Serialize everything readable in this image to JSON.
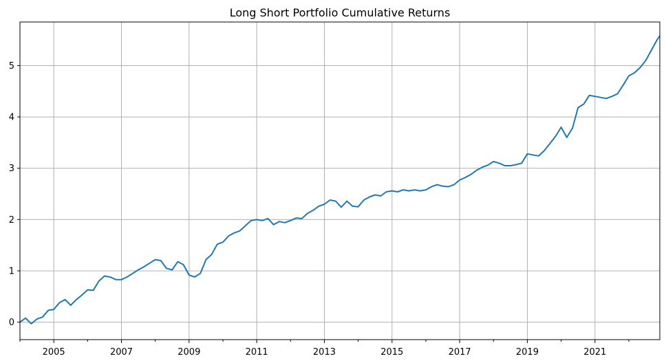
{
  "chart_data": {
    "type": "line",
    "title": "Long Short Portfolio Cumulative Returns",
    "xlabel": "",
    "ylabel": "",
    "xlim": [
      "2004-01",
      "2022-12"
    ],
    "ylim": [
      -0.34,
      5.85
    ],
    "grid": true,
    "x_major_ticks": [
      "2005",
      "2007",
      "2009",
      "2011",
      "2013",
      "2015",
      "2017",
      "2019",
      "2021"
    ],
    "y_ticks": [
      0,
      1,
      2,
      3,
      4,
      5
    ],
    "y_tick_labels": [
      "0",
      "1",
      "2",
      "3",
      "4",
      "5"
    ],
    "color": "#1f77b4",
    "series": [
      {
        "points": [
          [
            "2004-01",
            0.0
          ],
          [
            "2004-03",
            0.08
          ],
          [
            "2004-05",
            -0.03
          ],
          [
            "2004-07",
            0.06
          ],
          [
            "2004-09",
            0.1
          ],
          [
            "2004-11",
            0.23
          ],
          [
            "2005-01",
            0.25
          ],
          [
            "2005-03",
            0.38
          ],
          [
            "2005-05",
            0.44
          ],
          [
            "2005-07",
            0.33
          ],
          [
            "2005-09",
            0.44
          ],
          [
            "2005-11",
            0.53
          ],
          [
            "2006-01",
            0.63
          ],
          [
            "2006-03",
            0.62
          ],
          [
            "2006-05",
            0.8
          ],
          [
            "2006-07",
            0.9
          ],
          [
            "2006-09",
            0.88
          ],
          [
            "2006-11",
            0.83
          ],
          [
            "2007-01",
            0.83
          ],
          [
            "2007-03",
            0.88
          ],
          [
            "2007-05",
            0.95
          ],
          [
            "2007-07",
            1.02
          ],
          [
            "2007-09",
            1.08
          ],
          [
            "2007-11",
            1.15
          ],
          [
            "2008-01",
            1.22
          ],
          [
            "2008-03",
            1.2
          ],
          [
            "2008-05",
            1.05
          ],
          [
            "2008-07",
            1.02
          ],
          [
            "2008-09",
            1.18
          ],
          [
            "2008-11",
            1.12
          ],
          [
            "2009-01",
            0.92
          ],
          [
            "2009-03",
            0.88
          ],
          [
            "2009-05",
            0.95
          ],
          [
            "2009-07",
            1.22
          ],
          [
            "2009-09",
            1.32
          ],
          [
            "2009-11",
            1.52
          ],
          [
            "2010-01",
            1.56
          ],
          [
            "2010-03",
            1.68
          ],
          [
            "2010-05",
            1.74
          ],
          [
            "2010-07",
            1.78
          ],
          [
            "2010-09",
            1.88
          ],
          [
            "2010-11",
            1.98
          ],
          [
            "2011-01",
            2.0
          ],
          [
            "2011-03",
            1.98
          ],
          [
            "2011-05",
            2.02
          ],
          [
            "2011-07",
            1.9
          ],
          [
            "2011-09",
            1.96
          ],
          [
            "2011-11",
            1.94
          ],
          [
            "2012-01",
            1.98
          ],
          [
            "2012-03",
            2.03
          ],
          [
            "2012-05",
            2.02
          ],
          [
            "2012-07",
            2.12
          ],
          [
            "2012-09",
            2.18
          ],
          [
            "2012-11",
            2.26
          ],
          [
            "2013-01",
            2.3
          ],
          [
            "2013-03",
            2.38
          ],
          [
            "2013-05",
            2.36
          ],
          [
            "2013-07",
            2.24
          ],
          [
            "2013-09",
            2.36
          ],
          [
            "2013-11",
            2.26
          ],
          [
            "2014-01",
            2.25
          ],
          [
            "2014-03",
            2.38
          ],
          [
            "2014-05",
            2.44
          ],
          [
            "2014-07",
            2.48
          ],
          [
            "2014-09",
            2.46
          ],
          [
            "2014-11",
            2.54
          ],
          [
            "2015-01",
            2.56
          ],
          [
            "2015-03",
            2.54
          ],
          [
            "2015-05",
            2.58
          ],
          [
            "2015-07",
            2.56
          ],
          [
            "2015-09",
            2.58
          ],
          [
            "2015-11",
            2.56
          ],
          [
            "2016-01",
            2.58
          ],
          [
            "2016-03",
            2.64
          ],
          [
            "2016-05",
            2.68
          ],
          [
            "2016-07",
            2.65
          ],
          [
            "2016-09",
            2.64
          ],
          [
            "2016-11",
            2.68
          ],
          [
            "2017-01",
            2.77
          ],
          [
            "2017-03",
            2.82
          ],
          [
            "2017-05",
            2.88
          ],
          [
            "2017-07",
            2.96
          ],
          [
            "2017-09",
            3.02
          ],
          [
            "2017-11",
            3.06
          ],
          [
            "2018-01",
            3.13
          ],
          [
            "2018-03",
            3.1
          ],
          [
            "2018-05",
            3.05
          ],
          [
            "2018-07",
            3.05
          ],
          [
            "2018-09",
            3.07
          ],
          [
            "2018-11",
            3.1
          ],
          [
            "2019-01",
            3.28
          ],
          [
            "2019-03",
            3.26
          ],
          [
            "2019-05",
            3.24
          ],
          [
            "2019-07",
            3.34
          ],
          [
            "2019-09",
            3.48
          ],
          [
            "2019-11",
            3.62
          ],
          [
            "2020-01",
            3.8
          ],
          [
            "2020-03",
            3.6
          ],
          [
            "2020-05",
            3.78
          ],
          [
            "2020-07",
            4.18
          ],
          [
            "2020-09",
            4.25
          ],
          [
            "2020-11",
            4.42
          ],
          [
            "2021-01",
            4.4
          ],
          [
            "2021-03",
            4.38
          ],
          [
            "2021-05",
            4.36
          ],
          [
            "2021-07",
            4.4
          ],
          [
            "2021-09",
            4.45
          ],
          [
            "2021-11",
            4.62
          ],
          [
            "2022-01",
            4.8
          ],
          [
            "2022-03",
            4.86
          ],
          [
            "2022-05",
            4.96
          ],
          [
            "2022-07",
            5.1
          ],
          [
            "2022-09",
            5.3
          ],
          [
            "2022-11",
            5.5
          ],
          [
            "2022-12",
            5.58
          ]
        ]
      }
    ]
  }
}
